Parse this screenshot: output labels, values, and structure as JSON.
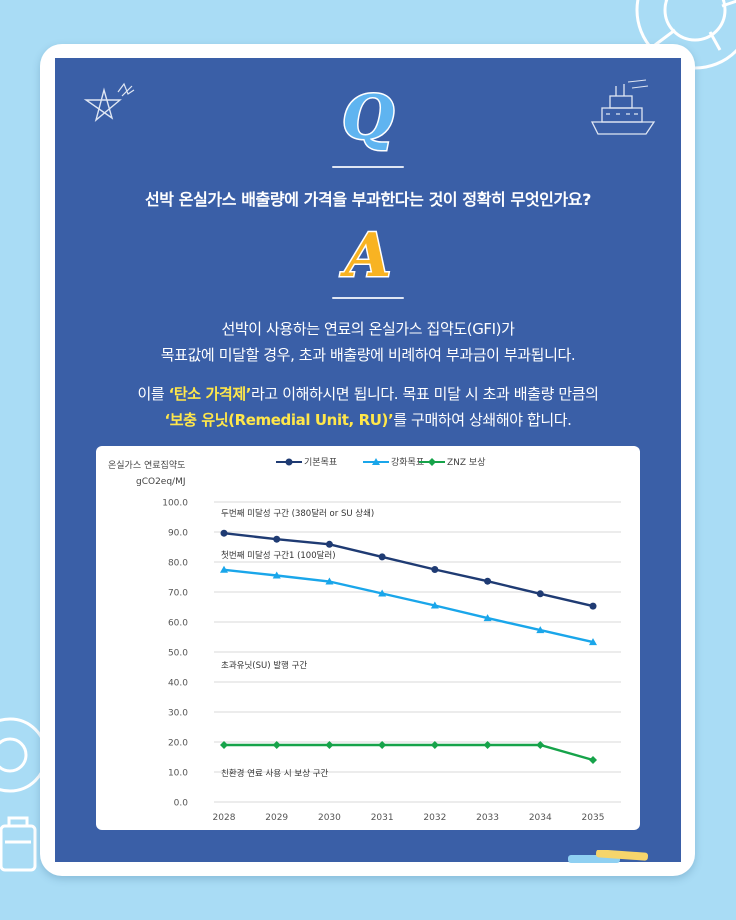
{
  "question": "선박 온실가스 배출량에 가격을 부과한다는 것이 정확히 무엇인가요?",
  "badge_q": "Q",
  "badge_a": "A",
  "answer": {
    "line1": "선박이 사용하는 연료의 온실가스 집약도(GFI)가",
    "line2": "목표값에 미달할 경우, 초과 배출량에 비례하여 부과금이 부과됩니다.",
    "line3_pre": "이를 ",
    "line3_hl": "‘탄소 가격제’",
    "line3_post": "라고 이해하시면 됩니다. 목표 미달 시 초과 배출량 만큼의",
    "line4_hl": "‘보충 유닛(Remedial Unit, RU)’",
    "line4_post": "를 구매하여 상쇄해야 합니다."
  },
  "colors": {
    "board": "#3a5fa7",
    "highlight": "#ffe74a",
    "base_series": "#1f3b73",
    "direct_series": "#1aa6ea",
    "znz_series": "#16a34a"
  },
  "chart_data": {
    "type": "line",
    "ylabel_line1": "온실가스 연료집약도",
    "ylabel_line2": "gCO2eq/MJ",
    "x": [
      "2028",
      "2029",
      "2030",
      "2031",
      "2032",
      "2033",
      "2034",
      "2035"
    ],
    "y_ticks": [
      "100.0",
      "90.0",
      "80.0",
      "70.0",
      "60.0",
      "50.0",
      "40.0",
      "30.0",
      "20.0",
      "10.0",
      "0.0"
    ],
    "ylim": [
      0,
      100
    ],
    "grid": true,
    "legend_position": "top",
    "series": [
      {
        "name": "기본목표",
        "color": "#1f3b73",
        "marker": "circle",
        "values": [
          89.6,
          87.6,
          85.9,
          81.7,
          77.5,
          73.6,
          69.4,
          65.3
        ]
      },
      {
        "name": "강화목표",
        "color": "#1aa6ea",
        "marker": "triangle",
        "values": [
          77.4,
          75.5,
          73.5,
          69.5,
          65.5,
          61.3,
          57.3,
          53.3
        ]
      },
      {
        "name": "ZNZ 보상",
        "color": "#16a34a",
        "marker": "diamond",
        "values": [
          19.0,
          19.0,
          19.0,
          19.0,
          19.0,
          19.0,
          19.0,
          14.0
        ]
      }
    ],
    "annotations": [
      "두번째 미달성 구간 (380달러 or SU 상쇄)",
      "첫번째 미달성 구간1 (100달러)",
      "초과유닛(SU) 발행 구간",
      "친환경 연료 사용 시 보상 구간"
    ]
  }
}
